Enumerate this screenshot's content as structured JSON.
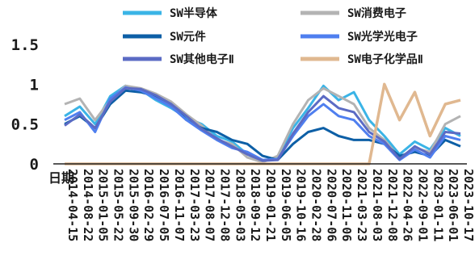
{
  "chart_data": {
    "type": "line",
    "xlabel": "日期",
    "ylabel": "",
    "ylim": [
      0,
      1.5
    ],
    "yticks": [
      "0",
      "0.5",
      "1",
      "1.5"
    ],
    "grid": false,
    "legend_position": "top",
    "x_tick_labels": [
      "2014-04-15",
      "2014-08-22",
      "2015-01-05",
      "2015-05-22",
      "2015-09-30",
      "2016-02-29",
      "2016-07-05",
      "2016-11-07",
      "2017-03-23",
      "2017-08-07",
      "2017-12-08",
      "2018-05-03",
      "2018-09-12",
      "2019-01-21",
      "2019-06-05",
      "2019-10-16",
      "2020-02-28",
      "2020-07-06",
      "2020-11-06",
      "2021-03-23",
      "2021-08-03",
      "2021-12-08",
      "2022-04-26",
      "2022-09-01",
      "2023-01-11",
      "2023-06-01",
      "2023-10-17"
    ],
    "series": [
      {
        "name": "SW半导体",
        "color": "#3bb4e6",
        "values": [
          0.6,
          0.72,
          0.5,
          0.85,
          0.98,
          0.93,
          0.8,
          0.7,
          0.58,
          0.5,
          0.35,
          0.28,
          0.12,
          0.03,
          0.08,
          0.45,
          0.7,
          0.98,
          0.8,
          0.9,
          0.55,
          0.35,
          0.12,
          0.28,
          0.18,
          0.45,
          0.35
        ]
      },
      {
        "name": "SW消费电子",
        "color": "#b3b3b3",
        "values": [
          0.75,
          0.82,
          0.55,
          0.8,
          0.98,
          0.95,
          0.88,
          0.78,
          0.62,
          0.48,
          0.3,
          0.25,
          0.08,
          0.02,
          0.1,
          0.5,
          0.8,
          0.95,
          0.85,
          0.75,
          0.45,
          0.3,
          0.08,
          0.2,
          0.15,
          0.5,
          0.6
        ]
      },
      {
        "name": "SW元件",
        "color": "#0d5fa6",
        "values": [
          0.5,
          0.6,
          0.45,
          0.75,
          0.92,
          0.9,
          0.85,
          0.75,
          0.55,
          0.45,
          0.4,
          0.3,
          0.25,
          0.1,
          0.05,
          0.25,
          0.4,
          0.45,
          0.35,
          0.3,
          0.3,
          0.25,
          0.1,
          0.15,
          0.1,
          0.3,
          0.22
        ]
      },
      {
        "name": "SW光学光电子",
        "color": "#4f7fef",
        "values": [
          0.55,
          0.65,
          0.4,
          0.82,
          0.96,
          0.92,
          0.82,
          0.72,
          0.55,
          0.42,
          0.3,
          0.2,
          0.15,
          0.05,
          0.06,
          0.35,
          0.6,
          0.75,
          0.6,
          0.55,
          0.35,
          0.25,
          0.05,
          0.18,
          0.08,
          0.35,
          0.3
        ]
      },
      {
        "name": "SW其他电子Ⅱ",
        "color": "#5b6bc4",
        "values": [
          0.48,
          0.62,
          0.45,
          0.78,
          0.95,
          0.94,
          0.86,
          0.75,
          0.6,
          0.44,
          0.32,
          0.22,
          0.12,
          0.04,
          0.05,
          0.38,
          0.65,
          0.85,
          0.7,
          0.65,
          0.4,
          0.28,
          0.06,
          0.22,
          0.12,
          0.4,
          0.38
        ]
      },
      {
        "name": "SW电子化学品Ⅱ",
        "color": "#e0b890",
        "values": [
          0,
          0,
          0,
          0,
          0,
          0,
          0,
          0,
          0,
          0,
          0,
          0,
          0,
          0,
          0,
          0,
          0,
          0,
          0,
          0,
          0,
          1.0,
          0.55,
          0.9,
          0.35,
          0.75,
          0.8
        ]
      }
    ]
  }
}
